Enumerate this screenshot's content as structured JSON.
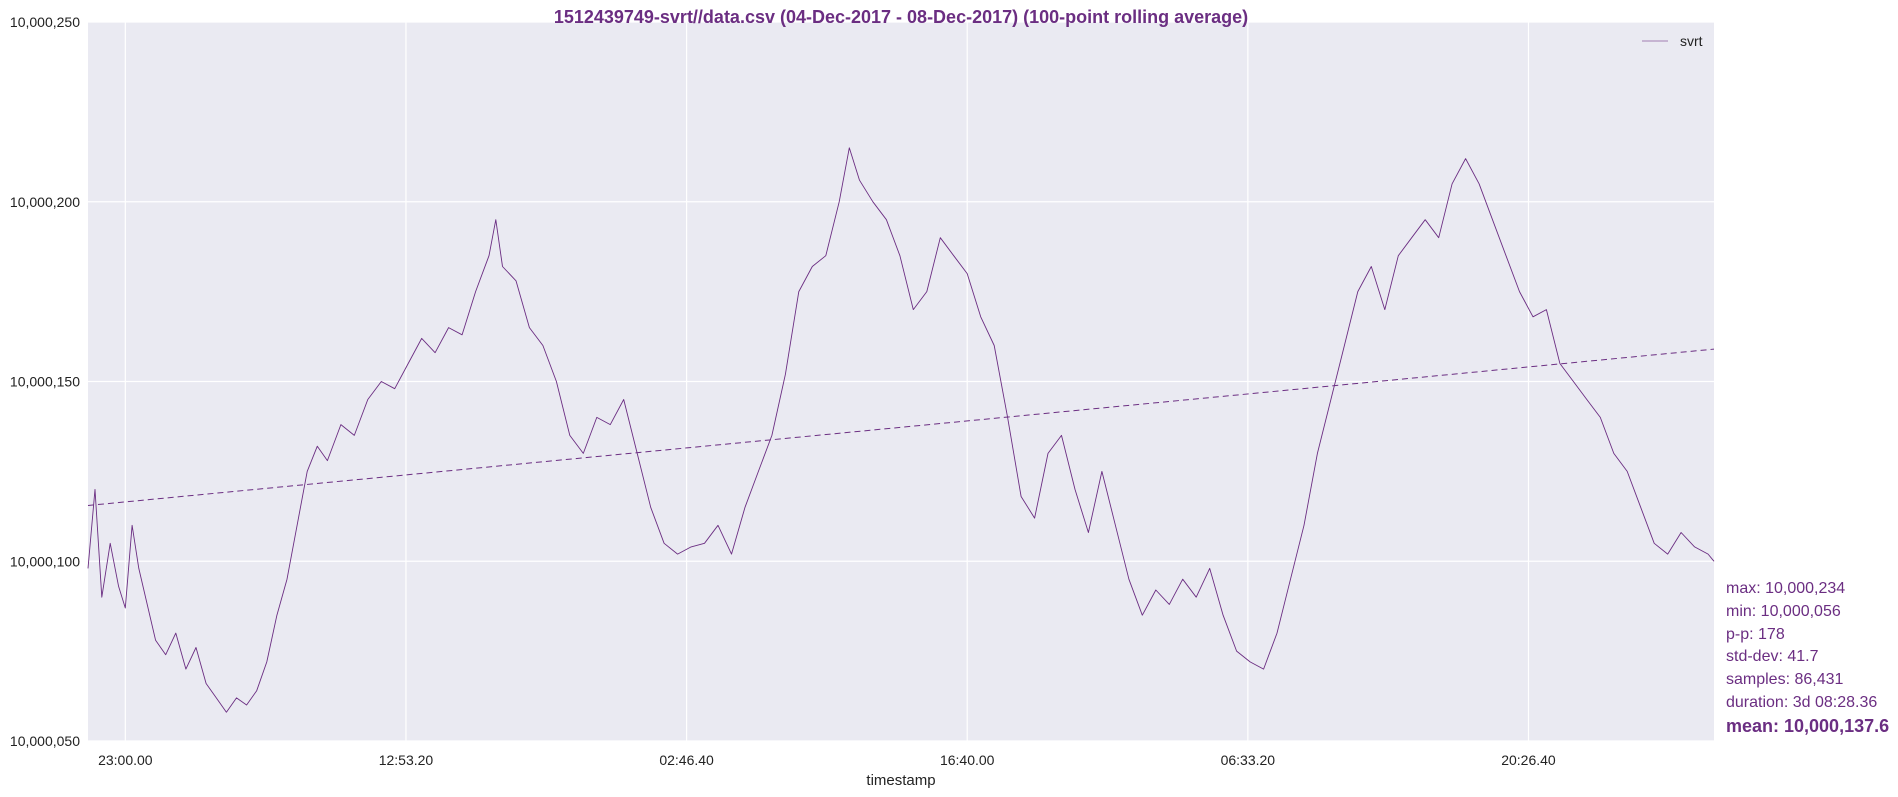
{
  "colors": {
    "accent": "#6b2e82",
    "plot_bg": "#eaeaf2",
    "grid": "#ffffff",
    "text": "#222222"
  },
  "chart_data": {
    "type": "line",
    "title": "1512439749-svrt//data.csv (04-Dec-2017 - 08-Dec-2017) (100-point rolling average)",
    "xlabel": "timestamp",
    "ylabel": "",
    "x_range": [
      "2017-12-04 21:09:09",
      "2017-12-08 05:37:37"
    ],
    "xticks": [
      {
        "t": "2017-12-04 23:00:00",
        "label": "23:00.00"
      },
      {
        "t": "2017-12-05 12:53:20",
        "label": "12:53.20"
      },
      {
        "t": "2017-12-06 02:46:40",
        "label": "02:46.40"
      },
      {
        "t": "2017-12-06 16:40:00",
        "label": "16:40.00"
      },
      {
        "t": "2017-12-07 06:33:20",
        "label": "06:33.20"
      },
      {
        "t": "2017-12-07 20:26:40",
        "label": "20:26.40"
      }
    ],
    "ylim": [
      10000050,
      10000250
    ],
    "yticks": [
      {
        "value": 10000050,
        "label": "10,000,050"
      },
      {
        "value": 10000100,
        "label": "10,000,100"
      },
      {
        "value": 10000150,
        "label": "10,000,150"
      },
      {
        "value": 10000200,
        "label": "10,000,200"
      },
      {
        "value": 10000250,
        "label": "10,000,250"
      }
    ],
    "grid": true,
    "legend": {
      "placement": "top-right",
      "entries": [
        "svrt"
      ]
    },
    "series": [
      {
        "name": "svrt",
        "style": "line",
        "color": "#6b2e82",
        "points": [
          [
            "2017-12-04 21:09:09",
            10000098
          ],
          [
            "2017-12-04 21:30:00",
            10000120
          ],
          [
            "2017-12-04 21:50:00",
            10000090
          ],
          [
            "2017-12-04 22:15:00",
            10000105
          ],
          [
            "2017-12-04 22:40:00",
            10000093
          ],
          [
            "2017-12-04 23:00:00",
            10000087
          ],
          [
            "2017-12-04 23:20:00",
            10000110
          ],
          [
            "2017-12-04 23:40:00",
            10000098
          ],
          [
            "2017-12-05 00:05:00",
            10000088
          ],
          [
            "2017-12-05 00:30:00",
            10000078
          ],
          [
            "2017-12-05 01:00:00",
            10000074
          ],
          [
            "2017-12-05 01:30:00",
            10000080
          ],
          [
            "2017-12-05 02:00:00",
            10000070
          ],
          [
            "2017-12-05 02:30:00",
            10000076
          ],
          [
            "2017-12-05 03:00:00",
            10000066
          ],
          [
            "2017-12-05 03:30:00",
            10000062
          ],
          [
            "2017-12-05 04:00:00",
            10000058
          ],
          [
            "2017-12-05 04:30:00",
            10000062
          ],
          [
            "2017-12-05 05:00:00",
            10000060
          ],
          [
            "2017-12-05 05:30:00",
            10000064
          ],
          [
            "2017-12-05 06:00:00",
            10000072
          ],
          [
            "2017-12-05 06:30:00",
            10000085
          ],
          [
            "2017-12-05 07:00:00",
            10000095
          ],
          [
            "2017-12-05 07:30:00",
            10000110
          ],
          [
            "2017-12-05 08:00:00",
            10000125
          ],
          [
            "2017-12-05 08:30:00",
            10000132
          ],
          [
            "2017-12-05 09:00:00",
            10000128
          ],
          [
            "2017-12-05 09:40:00",
            10000138
          ],
          [
            "2017-12-05 10:20:00",
            10000135
          ],
          [
            "2017-12-05 11:00:00",
            10000145
          ],
          [
            "2017-12-05 11:40:00",
            10000150
          ],
          [
            "2017-12-05 12:20:00",
            10000148
          ],
          [
            "2017-12-05 13:00:00",
            10000155
          ],
          [
            "2017-12-05 13:40:00",
            10000162
          ],
          [
            "2017-12-05 14:20:00",
            10000158
          ],
          [
            "2017-12-05 15:00:00",
            10000165
          ],
          [
            "2017-12-05 15:40:00",
            10000163
          ],
          [
            "2017-12-05 16:20:00",
            10000175
          ],
          [
            "2017-12-05 17:00:00",
            10000185
          ],
          [
            "2017-12-05 17:20:00",
            10000195
          ],
          [
            "2017-12-05 17:40:00",
            10000182
          ],
          [
            "2017-12-05 18:20:00",
            10000178
          ],
          [
            "2017-12-05 19:00:00",
            10000165
          ],
          [
            "2017-12-05 19:40:00",
            10000160
          ],
          [
            "2017-12-05 20:20:00",
            10000150
          ],
          [
            "2017-12-05 21:00:00",
            10000135
          ],
          [
            "2017-12-05 21:40:00",
            10000130
          ],
          [
            "2017-12-05 22:20:00",
            10000140
          ],
          [
            "2017-12-05 23:00:00",
            10000138
          ],
          [
            "2017-12-05 23:40:00",
            10000145
          ],
          [
            "2017-12-06 00:20:00",
            10000130
          ],
          [
            "2017-12-06 01:00:00",
            10000115
          ],
          [
            "2017-12-06 01:40:00",
            10000105
          ],
          [
            "2017-12-06 02:20:00",
            10000102
          ],
          [
            "2017-12-06 03:00:00",
            10000104
          ],
          [
            "2017-12-06 03:40:00",
            10000105
          ],
          [
            "2017-12-06 04:20:00",
            10000110
          ],
          [
            "2017-12-06 05:00:00",
            10000102
          ],
          [
            "2017-12-06 05:40:00",
            10000115
          ],
          [
            "2017-12-06 06:20:00",
            10000125
          ],
          [
            "2017-12-06 07:00:00",
            10000135
          ],
          [
            "2017-12-06 07:40:00",
            10000152
          ],
          [
            "2017-12-06 08:20:00",
            10000175
          ],
          [
            "2017-12-06 09:00:00",
            10000182
          ],
          [
            "2017-12-06 09:40:00",
            10000185
          ],
          [
            "2017-12-06 10:20:00",
            10000200
          ],
          [
            "2017-12-06 10:50:00",
            10000215
          ],
          [
            "2017-12-06 11:20:00",
            10000206
          ],
          [
            "2017-12-06 12:00:00",
            10000200
          ],
          [
            "2017-12-06 12:40:00",
            10000195
          ],
          [
            "2017-12-06 13:20:00",
            10000185
          ],
          [
            "2017-12-06 14:00:00",
            10000170
          ],
          [
            "2017-12-06 14:40:00",
            10000175
          ],
          [
            "2017-12-06 15:20:00",
            10000190
          ],
          [
            "2017-12-06 16:00:00",
            10000185
          ],
          [
            "2017-12-06 16:40:00",
            10000180
          ],
          [
            "2017-12-06 17:20:00",
            10000168
          ],
          [
            "2017-12-06 18:00:00",
            10000160
          ],
          [
            "2017-12-06 18:40:00",
            10000140
          ],
          [
            "2017-12-06 19:20:00",
            10000118
          ],
          [
            "2017-12-06 20:00:00",
            10000112
          ],
          [
            "2017-12-06 20:40:00",
            10000130
          ],
          [
            "2017-12-06 21:20:00",
            10000135
          ],
          [
            "2017-12-06 22:00:00",
            10000120
          ],
          [
            "2017-12-06 22:40:00",
            10000108
          ],
          [
            "2017-12-06 23:20:00",
            10000125
          ],
          [
            "2017-12-07 00:00:00",
            10000110
          ],
          [
            "2017-12-07 00:40:00",
            10000095
          ],
          [
            "2017-12-07 01:20:00",
            10000085
          ],
          [
            "2017-12-07 02:00:00",
            10000092
          ],
          [
            "2017-12-07 02:40:00",
            10000088
          ],
          [
            "2017-12-07 03:20:00",
            10000095
          ],
          [
            "2017-12-07 04:00:00",
            10000090
          ],
          [
            "2017-12-07 04:40:00",
            10000098
          ],
          [
            "2017-12-07 05:20:00",
            10000085
          ],
          [
            "2017-12-07 06:00:00",
            10000075
          ],
          [
            "2017-12-07 06:40:00",
            10000072
          ],
          [
            "2017-12-07 07:20:00",
            10000070
          ],
          [
            "2017-12-07 08:00:00",
            10000080
          ],
          [
            "2017-12-07 08:40:00",
            10000095
          ],
          [
            "2017-12-07 09:20:00",
            10000110
          ],
          [
            "2017-12-07 10:00:00",
            10000130
          ],
          [
            "2017-12-07 10:40:00",
            10000145
          ],
          [
            "2017-12-07 11:20:00",
            10000160
          ],
          [
            "2017-12-07 12:00:00",
            10000175
          ],
          [
            "2017-12-07 12:40:00",
            10000182
          ],
          [
            "2017-12-07 13:20:00",
            10000170
          ],
          [
            "2017-12-07 14:00:00",
            10000185
          ],
          [
            "2017-12-07 14:40:00",
            10000190
          ],
          [
            "2017-12-07 15:20:00",
            10000195
          ],
          [
            "2017-12-07 16:00:00",
            10000190
          ],
          [
            "2017-12-07 16:40:00",
            10000205
          ],
          [
            "2017-12-07 17:20:00",
            10000212
          ],
          [
            "2017-12-07 18:00:00",
            10000205
          ],
          [
            "2017-12-07 18:40:00",
            10000195
          ],
          [
            "2017-12-07 19:20:00",
            10000185
          ],
          [
            "2017-12-07 20:00:00",
            10000175
          ],
          [
            "2017-12-07 20:40:00",
            10000168
          ],
          [
            "2017-12-07 21:20:00",
            10000170
          ],
          [
            "2017-12-07 22:00:00",
            10000155
          ],
          [
            "2017-12-07 22:40:00",
            10000150
          ],
          [
            "2017-12-07 23:20:00",
            10000145
          ],
          [
            "2017-12-08 00:00:00",
            10000140
          ],
          [
            "2017-12-08 00:40:00",
            10000130
          ],
          [
            "2017-12-08 01:20:00",
            10000125
          ],
          [
            "2017-12-08 02:00:00",
            10000115
          ],
          [
            "2017-12-08 02:40:00",
            10000105
          ],
          [
            "2017-12-08 03:20:00",
            10000102
          ],
          [
            "2017-12-08 04:00:00",
            10000108
          ],
          [
            "2017-12-08 04:40:00",
            10000104
          ],
          [
            "2017-12-08 05:20:00",
            10000102
          ],
          [
            "2017-12-08 05:37:37",
            10000100
          ]
        ]
      },
      {
        "style": "dashed-trend",
        "color": "#6b2e82",
        "points": [
          [
            "2017-12-04 21:09:09",
            10000115.5
          ],
          [
            "2017-12-08 05:37:37",
            10000159.0
          ]
        ]
      }
    ]
  },
  "stats": {
    "max": "max: 10,000,234",
    "min": "min: 10,000,056",
    "pp": "p-p: 178",
    "std": "std-dev: 41.7",
    "samples": "samples: 86,431",
    "duration": "duration: 3d 08:28.36",
    "mean": "mean: 10,000,137.6"
  }
}
